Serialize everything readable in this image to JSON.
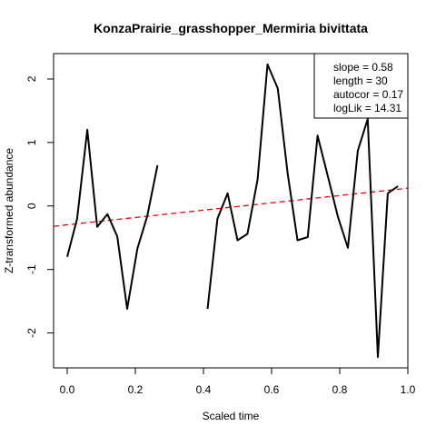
{
  "chart_data": {
    "type": "line",
    "title": "KonzaPrairie_grasshopper_Mermiria bivittata",
    "xlabel": "Scaled time",
    "ylabel": "Z-transformed abundance",
    "xlim": [
      -0.04,
      1.0
    ],
    "ylim": [
      -2.55,
      2.4
    ],
    "xticks": [
      0.0,
      0.2,
      0.4,
      0.6,
      0.8,
      1.0
    ],
    "xtick_labels": [
      "0.0",
      "0.2",
      "0.4",
      "0.6",
      "0.8",
      "1.0"
    ],
    "yticks": [
      -2,
      -1,
      0,
      1,
      2
    ],
    "ytick_labels": [
      "-2",
      "-1",
      "0",
      "1",
      "2"
    ],
    "grid": false,
    "series": [
      {
        "color": "#000000",
        "segments": [
          {
            "x": [
              0.0,
              0.029,
              0.059,
              0.088,
              0.118,
              0.147,
              0.176,
              0.206,
              0.235,
              0.265
            ],
            "y": [
              -0.8,
              -0.2,
              1.2,
              -0.33,
              -0.13,
              -0.48,
              -1.62,
              -0.67,
              -0.16,
              0.64
            ]
          },
          {
            "x": [
              0.412,
              0.441,
              0.471,
              0.5,
              0.529,
              0.559,
              0.588,
              0.618,
              0.647,
              0.676,
              0.706,
              0.735,
              0.765,
              0.794,
              0.824,
              0.853,
              0.882,
              0.912,
              0.941,
              0.971
            ],
            "y": [
              -1.62,
              -0.2,
              0.2,
              -0.54,
              -0.44,
              0.42,
              2.23,
              1.85,
              0.52,
              -0.54,
              -0.49,
              1.11,
              0.47,
              -0.16,
              -0.66,
              0.87,
              1.37,
              -2.38,
              0.2,
              0.31
            ]
          }
        ]
      }
    ],
    "trend_line": {
      "color": "#e8000b",
      "style": "dashed",
      "x": [
        -0.04,
        1.0
      ],
      "y": [
        -0.32,
        0.28
      ]
    },
    "legend": {
      "placement": "top-right",
      "entries": [
        "slope = 0.58",
        "length = 30",
        "autocor = 0.17",
        "logLik = 14.31"
      ]
    }
  }
}
